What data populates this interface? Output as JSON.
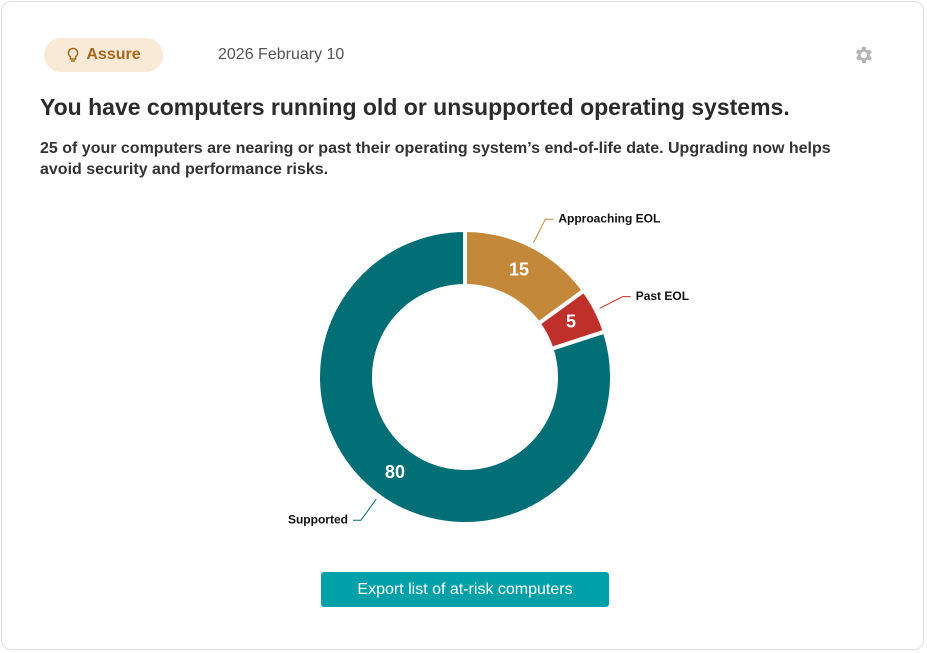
{
  "header": {
    "badge": "Assure",
    "date": "2026 February 10"
  },
  "title": "You have computers running old or unsupported operating systems.",
  "description": "25 of your computers are nearing or past their operating system’s end-of-life date. Upgrading now helps avoid security and performance risks.",
  "chart_data": {
    "type": "donut",
    "categories": [
      "Approaching EOL",
      "Past EOL",
      "Supported"
    ],
    "values": [
      15,
      5,
      80
    ],
    "colors": [
      "#c4883a",
      "#c0302b",
      "#006e75"
    ]
  },
  "button": "Export list of at-risk computers"
}
